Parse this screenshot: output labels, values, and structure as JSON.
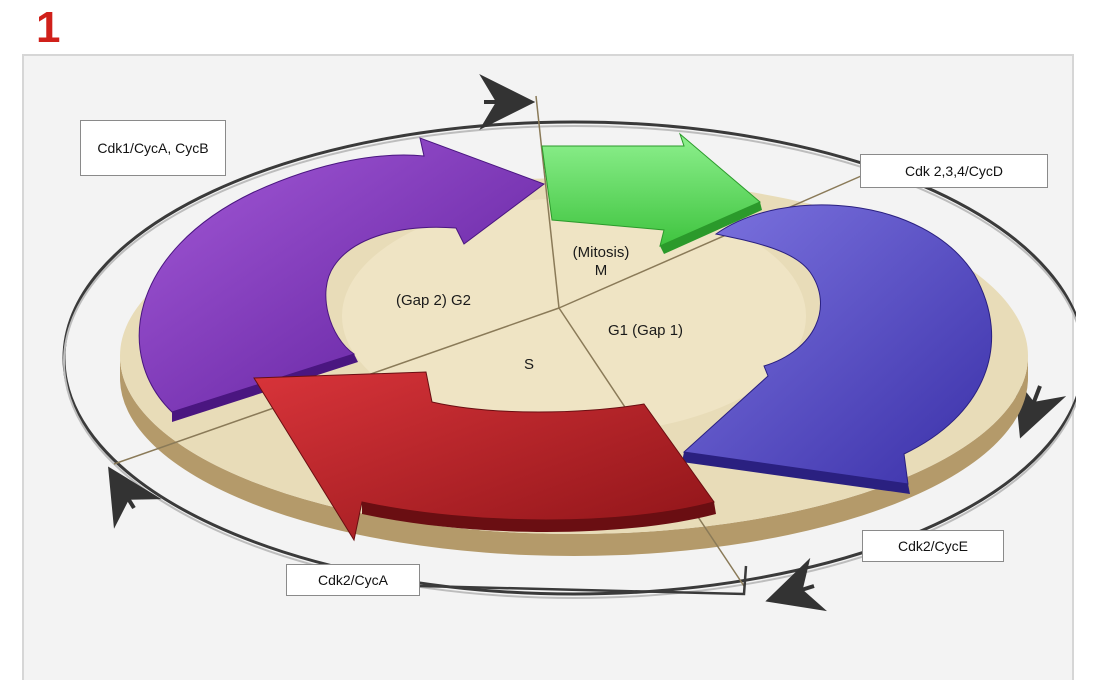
{
  "figure": {
    "number": "1"
  },
  "phases": {
    "mitosis_line1": "(Mitosis)",
    "mitosis_line2": "M",
    "g1": "G1 (Gap 1)",
    "s": "S",
    "g2": "(Gap 2) G2"
  },
  "complexes": {
    "cdk1": "Cdk1/CycA, CycB",
    "cdk234": "Cdk 2,3,4/CycD",
    "cdk2e": "Cdk2/CycE",
    "cdk2a": "Cdk2/CycA"
  },
  "colors": {
    "mitosis_arrow": "#5fe25f",
    "g1_arrow": "#5b4fc8",
    "s_arrow": "#b21f24",
    "g2_arrow": "#7a2fb8",
    "disc_top": "#e8dcb8",
    "disc_side": "#b49a6a",
    "figure_number": "#d0201a"
  }
}
